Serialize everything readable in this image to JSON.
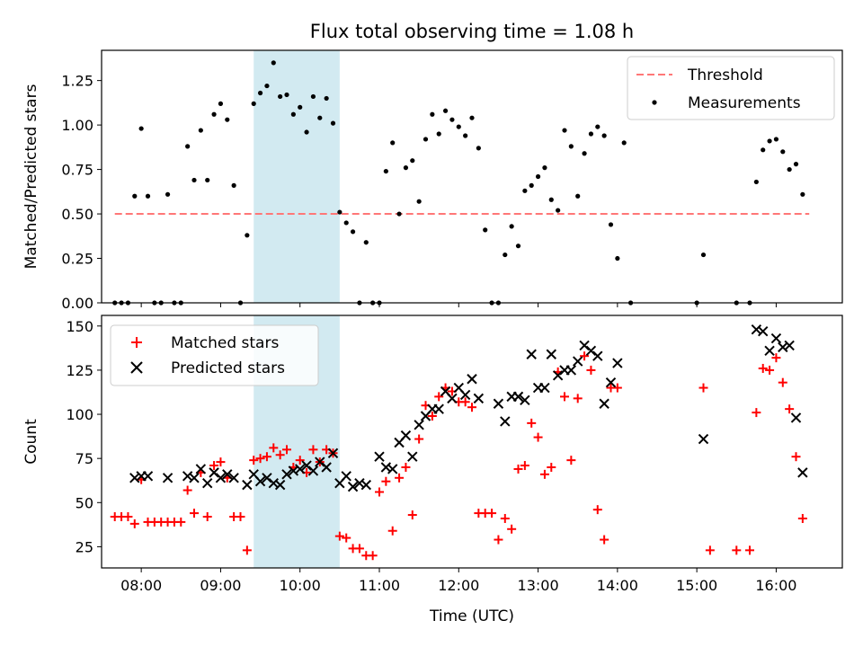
{
  "title": "Flux total observing time = 1.08 h",
  "x_axis_label": "Time (UTC)",
  "x_ticks": [
    "08:00",
    "09:00",
    "10:00",
    "11:00",
    "12:00",
    "13:00",
    "14:00",
    "15:00",
    "16:00"
  ],
  "colors": {
    "threshold": "#ff7777",
    "measurements": "#000000",
    "matched": "#ff0000",
    "predicted": "#000000",
    "highlight_band": "#add8e6"
  },
  "chart_data": [
    {
      "type": "scatter",
      "panel": "top",
      "ylabel": "Matched/Predicted stars",
      "xlim": [
        "07:30",
        "16:50"
      ],
      "ylim": [
        0,
        1.42
      ],
      "yticks": [
        "0.00",
        "0.25",
        "0.50",
        "0.75",
        "1.00",
        "1.25"
      ],
      "highlight": {
        "x_start": "09:25",
        "x_end": "10:30"
      },
      "legend": {
        "placement": "top-right",
        "entries": [
          "Threshold",
          "Measurements"
        ]
      },
      "threshold": {
        "name": "Threshold",
        "x": [
          "07:40",
          "16:25"
        ],
        "y": 0.5
      },
      "series": [
        {
          "name": "Measurements",
          "points": [
            [
              "07:40",
              0
            ],
            [
              "07:45",
              0
            ],
            [
              "07:50",
              0
            ],
            [
              "07:55",
              0.6
            ],
            [
              "08:00",
              0.98
            ],
            [
              "08:05",
              0.6
            ],
            [
              "08:10",
              0
            ],
            [
              "08:15",
              0
            ],
            [
              "08:20",
              0.61
            ],
            [
              "08:25",
              0
            ],
            [
              "08:30",
              0
            ],
            [
              "08:35",
              0.88
            ],
            [
              "08:40",
              0.69
            ],
            [
              "08:45",
              0.97
            ],
            [
              "08:50",
              0.69
            ],
            [
              "08:55",
              1.06
            ],
            [
              "09:00",
              1.12
            ],
            [
              "09:05",
              1.03
            ],
            [
              "09:10",
              0.66
            ],
            [
              "09:15",
              0
            ],
            [
              "09:20",
              0.38
            ],
            [
              "09:25",
              1.12
            ],
            [
              "09:30",
              1.18
            ],
            [
              "09:35",
              1.22
            ],
            [
              "09:40",
              1.35
            ],
            [
              "09:45",
              1.16
            ],
            [
              "09:50",
              1.17
            ],
            [
              "09:55",
              1.06
            ],
            [
              "10:00",
              1.1
            ],
            [
              "10:05",
              0.96
            ],
            [
              "10:10",
              1.16
            ],
            [
              "10:15",
              1.04
            ],
            [
              "10:20",
              1.15
            ],
            [
              "10:25",
              1.01
            ],
            [
              "10:30",
              0.51
            ],
            [
              "10:35",
              0.45
            ],
            [
              "10:40",
              0.4
            ],
            [
              "10:45",
              0
            ],
            [
              "10:50",
              0.34
            ],
            [
              "10:55",
              0
            ],
            [
              "11:00",
              0
            ],
            [
              "11:05",
              0.74
            ],
            [
              "11:10",
              0.9
            ],
            [
              "11:15",
              0.5
            ],
            [
              "11:20",
              0.76
            ],
            [
              "11:25",
              0.8
            ],
            [
              "11:30",
              0.57
            ],
            [
              "11:35",
              0.92
            ],
            [
              "11:40",
              1.06
            ],
            [
              "11:45",
              0.95
            ],
            [
              "11:50",
              1.08
            ],
            [
              "11:55",
              1.03
            ],
            [
              "12:00",
              0.99
            ],
            [
              "12:05",
              0.94
            ],
            [
              "12:10",
              1.04
            ],
            [
              "12:15",
              0.87
            ],
            [
              "12:20",
              0.41
            ],
            [
              "12:25",
              0
            ],
            [
              "12:30",
              0
            ],
            [
              "12:35",
              0.27
            ],
            [
              "12:40",
              0.43
            ],
            [
              "12:45",
              0.32
            ],
            [
              "12:50",
              0.63
            ],
            [
              "12:55",
              0.66
            ],
            [
              "13:00",
              0.71
            ],
            [
              "13:05",
              0.76
            ],
            [
              "13:10",
              0.58
            ],
            [
              "13:15",
              0.52
            ],
            [
              "13:20",
              0.97
            ],
            [
              "13:25",
              0.88
            ],
            [
              "13:30",
              0.6
            ],
            [
              "13:35",
              0.84
            ],
            [
              "13:40",
              0.95
            ],
            [
              "13:45",
              0.99
            ],
            [
              "13:50",
              0.94
            ],
            [
              "13:55",
              0.44
            ],
            [
              "14:00",
              0.25
            ],
            [
              "14:05",
              0.9
            ],
            [
              "14:10",
              0
            ],
            [
              "15:00",
              0
            ],
            [
              "15:05",
              0.27
            ],
            [
              "15:30",
              0
            ],
            [
              "15:40",
              0
            ],
            [
              "15:45",
              0.68
            ],
            [
              "15:50",
              0.86
            ],
            [
              "15:55",
              0.91
            ],
            [
              "16:00",
              0.92
            ],
            [
              "16:05",
              0.85
            ],
            [
              "16:10",
              0.75
            ],
            [
              "16:15",
              0.78
            ],
            [
              "16:20",
              0.61
            ]
          ]
        }
      ]
    },
    {
      "type": "scatter",
      "panel": "bottom",
      "ylabel": "Count",
      "xlim": [
        "07:30",
        "16:50"
      ],
      "ylim": [
        13,
        156
      ],
      "yticks": [
        "25",
        "50",
        "75",
        "100",
        "125",
        "150"
      ],
      "highlight": {
        "x_start": "09:25",
        "x_end": "10:30"
      },
      "legend": {
        "placement": "top-left",
        "entries": [
          "Matched stars",
          "Predicted stars"
        ]
      },
      "series": [
        {
          "name": "Matched stars",
          "marker": "plus",
          "points": [
            [
              "07:40",
              42
            ],
            [
              "07:45",
              42
            ],
            [
              "07:50",
              42
            ],
            [
              "07:55",
              38
            ],
            [
              "08:00",
              63
            ],
            [
              "08:05",
              39
            ],
            [
              "08:10",
              39
            ],
            [
              "08:15",
              39
            ],
            [
              "08:20",
              39
            ],
            [
              "08:25",
              39
            ],
            [
              "08:30",
              39
            ],
            [
              "08:35",
              57
            ],
            [
              "08:40",
              44
            ],
            [
              "08:45",
              67
            ],
            [
              "08:50",
              42
            ],
            [
              "08:55",
              71
            ],
            [
              "09:00",
              73
            ],
            [
              "09:05",
              64
            ],
            [
              "09:10",
              42
            ],
            [
              "09:15",
              42
            ],
            [
              "09:20",
              23
            ],
            [
              "09:25",
              74
            ],
            [
              "09:30",
              75
            ],
            [
              "09:35",
              76
            ],
            [
              "09:40",
              81
            ],
            [
              "09:45",
              77
            ],
            [
              "09:50",
              80
            ],
            [
              "09:55",
              70
            ],
            [
              "10:00",
              74
            ],
            [
              "10:05",
              67
            ],
            [
              "10:10",
              80
            ],
            [
              "10:15",
              73
            ],
            [
              "10:20",
              80
            ],
            [
              "10:25",
              78
            ],
            [
              "10:30",
              31
            ],
            [
              "10:35",
              30
            ],
            [
              "10:40",
              24
            ],
            [
              "10:45",
              24
            ],
            [
              "10:50",
              20
            ],
            [
              "10:55",
              20
            ],
            [
              "11:00",
              56
            ],
            [
              "11:05",
              62
            ],
            [
              "11:10",
              34
            ],
            [
              "11:15",
              64
            ],
            [
              "11:20",
              70
            ],
            [
              "11:25",
              43
            ],
            [
              "11:30",
              86
            ],
            [
              "11:35",
              105
            ],
            [
              "11:40",
              99
            ],
            [
              "11:45",
              110
            ],
            [
              "11:50",
              115
            ],
            [
              "11:55",
              113
            ],
            [
              "12:00",
              107
            ],
            [
              "12:05",
              107
            ],
            [
              "12:10",
              104
            ],
            [
              "12:15",
              44
            ],
            [
              "12:20",
              44
            ],
            [
              "12:25",
              44
            ],
            [
              "12:30",
              29
            ],
            [
              "12:35",
              41
            ],
            [
              "12:40",
              35
            ],
            [
              "12:45",
              69
            ],
            [
              "12:50",
              71
            ],
            [
              "12:55",
              95
            ],
            [
              "13:00",
              87
            ],
            [
              "13:05",
              66
            ],
            [
              "13:10",
              70
            ],
            [
              "13:15",
              124
            ],
            [
              "13:20",
              110
            ],
            [
              "13:25",
              74
            ],
            [
              "13:30",
              109
            ],
            [
              "13:35",
              133
            ],
            [
              "13:40",
              125
            ],
            [
              "13:45",
              46
            ],
            [
              "13:50",
              29
            ],
            [
              "13:55",
              115
            ],
            [
              "14:00",
              115
            ],
            [
              "15:05",
              115
            ],
            [
              "15:10",
              23
            ],
            [
              "15:30",
              23
            ],
            [
              "15:40",
              23
            ],
            [
              "15:45",
              101
            ],
            [
              "15:50",
              126
            ],
            [
              "15:55",
              125
            ],
            [
              "16:00",
              132
            ],
            [
              "16:05",
              118
            ],
            [
              "16:10",
              103
            ],
            [
              "16:15",
              76
            ],
            [
              "16:20",
              41
            ]
          ]
        },
        {
          "name": "Predicted stars",
          "marker": "x",
          "points": [
            [
              "07:55",
              64
            ],
            [
              "08:00",
              65
            ],
            [
              "08:05",
              65
            ],
            [
              "08:20",
              64
            ],
            [
              "08:35",
              65
            ],
            [
              "08:40",
              64
            ],
            [
              "08:45",
              69
            ],
            [
              "08:50",
              61
            ],
            [
              "08:55",
              67
            ],
            [
              "09:00",
              64
            ],
            [
              "09:05",
              66
            ],
            [
              "09:10",
              64
            ],
            [
              "09:20",
              60
            ],
            [
              "09:25",
              66
            ],
            [
              "09:30",
              62
            ],
            [
              "09:35",
              64
            ],
            [
              "09:40",
              61
            ],
            [
              "09:45",
              60
            ],
            [
              "09:50",
              66
            ],
            [
              "09:55",
              68
            ],
            [
              "10:00",
              69
            ],
            [
              "10:05",
              71
            ],
            [
              "10:10",
              68
            ],
            [
              "10:15",
              73
            ],
            [
              "10:20",
              70
            ],
            [
              "10:25",
              78
            ],
            [
              "10:30",
              61
            ],
            [
              "10:35",
              65
            ],
            [
              "10:40",
              59
            ],
            [
              "10:45",
              61
            ],
            [
              "10:50",
              60
            ],
            [
              "11:00",
              76
            ],
            [
              "11:05",
              70
            ],
            [
              "11:10",
              69
            ],
            [
              "11:15",
              84
            ],
            [
              "11:20",
              88
            ],
            [
              "11:25",
              76
            ],
            [
              "11:30",
              94
            ],
            [
              "11:35",
              99
            ],
            [
              "11:40",
              103
            ],
            [
              "11:45",
              103
            ],
            [
              "11:50",
              113
            ],
            [
              "11:55",
              109
            ],
            [
              "12:00",
              115
            ],
            [
              "12:05",
              111
            ],
            [
              "12:10",
              120
            ],
            [
              "12:15",
              109
            ],
            [
              "12:30",
              106
            ],
            [
              "12:35",
              96
            ],
            [
              "12:40",
              110
            ],
            [
              "12:45",
              110
            ],
            [
              "12:50",
              108
            ],
            [
              "12:55",
              134
            ],
            [
              "13:00",
              115
            ],
            [
              "13:05",
              115
            ],
            [
              "13:10",
              134
            ],
            [
              "13:15",
              122
            ],
            [
              "13:20",
              125
            ],
            [
              "13:25",
              125
            ],
            [
              "13:30",
              130
            ],
            [
              "13:35",
              139
            ],
            [
              "13:40",
              136
            ],
            [
              "13:45",
              133
            ],
            [
              "13:50",
              106
            ],
            [
              "13:55",
              118
            ],
            [
              "14:00",
              129
            ],
            [
              "15:05",
              86
            ],
            [
              "15:45",
              148
            ],
            [
              "15:50",
              147
            ],
            [
              "15:55",
              136
            ],
            [
              "16:00",
              143
            ],
            [
              "16:05",
              138
            ],
            [
              "16:10",
              139
            ],
            [
              "16:15",
              98
            ],
            [
              "16:20",
              67
            ]
          ]
        }
      ]
    }
  ]
}
